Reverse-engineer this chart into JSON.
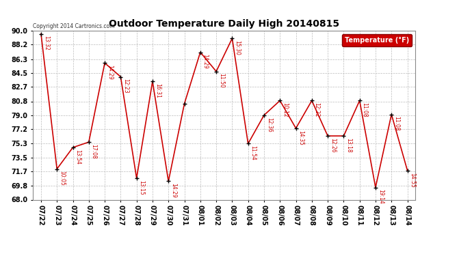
{
  "title": "Outdoor Temperature Daily High 20140815",
  "copyright": "Copyright 2014 Cartronics.com",
  "legend_label": "Temperature (°F)",
  "dates": [
    "07/22",
    "07/23",
    "07/24",
    "07/25",
    "07/26",
    "07/27",
    "07/28",
    "07/29",
    "07/30",
    "07/31",
    "08/01",
    "08/02",
    "08/03",
    "08/04",
    "08/05",
    "08/06",
    "08/07",
    "08/08",
    "08/09",
    "08/10",
    "08/11",
    "08/12",
    "08/13",
    "08/14"
  ],
  "temps": [
    89.6,
    72.0,
    74.8,
    75.5,
    85.8,
    84.0,
    70.8,
    83.4,
    70.4,
    80.5,
    87.2,
    84.7,
    89.0,
    75.3,
    79.0,
    80.9,
    77.3,
    80.9,
    76.3,
    76.3,
    80.9,
    69.6,
    79.1,
    71.8
  ],
  "annotations": [
    "13:32",
    "10:05",
    "13:54",
    "17:08",
    "14:29",
    "12:23",
    "13:15",
    "16:31",
    "14:29",
    "",
    "14:29",
    "11:50",
    "15:30",
    "11:54",
    "12:36",
    "10:12",
    "14:35",
    "12:22",
    "12:26",
    "13:18",
    "11:08",
    "19:14",
    "11:08",
    "14:55"
  ],
  "ylim": [
    68.0,
    90.0
  ],
  "yticks": [
    68.0,
    69.8,
    71.7,
    73.5,
    75.3,
    77.2,
    79.0,
    80.8,
    82.7,
    84.5,
    86.3,
    88.2,
    90.0
  ],
  "line_color": "#cc0000",
  "marker_color": "#000000",
  "bg_color": "#ffffff",
  "grid_color": "#bbbbbb",
  "title_color": "#000000",
  "annotation_color": "#cc0000",
  "legend_bg": "#cc0000",
  "legend_text_color": "#ffffff",
  "fig_width": 6.9,
  "fig_height": 3.75,
  "dpi": 100
}
